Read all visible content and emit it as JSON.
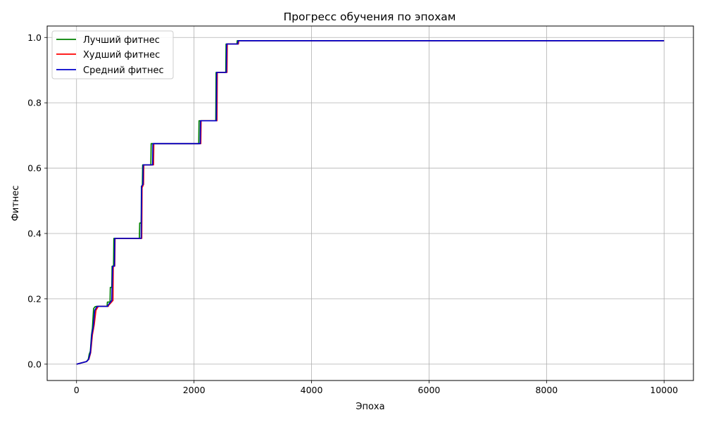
{
  "chart_data": {
    "type": "line",
    "title": "Прогресс обучения по эпохам",
    "xlabel": "Эпоха",
    "ylabel": "Фитнес",
    "xlim": [
      -500,
      10500
    ],
    "ylim": [
      -0.05,
      1.035
    ],
    "x_ticks": [
      0,
      2000,
      4000,
      6000,
      8000,
      10000
    ],
    "x_tick_labels": [
      "0",
      "2000",
      "4000",
      "6000",
      "8000",
      "10000"
    ],
    "y_ticks": [
      0.0,
      0.2,
      0.4,
      0.6,
      0.8,
      1.0
    ],
    "y_tick_labels": [
      "0.0",
      "0.2",
      "0.4",
      "0.6",
      "0.8",
      "1.0"
    ],
    "grid": true,
    "legend_position": "top-left",
    "series": [
      {
        "name": "Лучший фитнес",
        "color": "#008000",
        "points": [
          [
            0,
            0
          ],
          [
            170,
            0.008
          ],
          [
            200,
            0.015
          ],
          [
            215,
            0.03
          ],
          [
            235,
            0.04
          ],
          [
            255,
            0.09
          ],
          [
            270,
            0.11
          ],
          [
            290,
            0.17
          ],
          [
            310,
            0.175
          ],
          [
            340,
            0.177
          ],
          [
            520,
            0.177
          ],
          [
            525,
            0.19
          ],
          [
            570,
            0.19
          ],
          [
            575,
            0.235
          ],
          [
            600,
            0.235
          ],
          [
            605,
            0.3
          ],
          [
            630,
            0.3
          ],
          [
            635,
            0.385
          ],
          [
            1070,
            0.385
          ],
          [
            1075,
            0.432
          ],
          [
            1100,
            0.432
          ],
          [
            1105,
            0.545
          ],
          [
            1120,
            0.545
          ],
          [
            1125,
            0.61
          ],
          [
            1265,
            0.61
          ],
          [
            1270,
            0.675
          ],
          [
            2080,
            0.675
          ],
          [
            2085,
            0.745
          ],
          [
            2370,
            0.745
          ],
          [
            2375,
            0.893
          ],
          [
            2540,
            0.893
          ],
          [
            2545,
            0.98
          ],
          [
            2730,
            0.98
          ],
          [
            2735,
            0.99
          ],
          [
            10000,
            0.99
          ]
        ]
      },
      {
        "name": "Худший фитнес",
        "color": "#ff0000",
        "points": [
          [
            0,
            0
          ],
          [
            170,
            0.008
          ],
          [
            210,
            0.015
          ],
          [
            240,
            0.035
          ],
          [
            270,
            0.09
          ],
          [
            300,
            0.12
          ],
          [
            330,
            0.165
          ],
          [
            370,
            0.177
          ],
          [
            540,
            0.177
          ],
          [
            545,
            0.18
          ],
          [
            620,
            0.195
          ],
          [
            625,
            0.3
          ],
          [
            650,
            0.3
          ],
          [
            655,
            0.385
          ],
          [
            1110,
            0.385
          ],
          [
            1115,
            0.54
          ],
          [
            1140,
            0.55
          ],
          [
            1145,
            0.61
          ],
          [
            1310,
            0.61
          ],
          [
            1315,
            0.675
          ],
          [
            2115,
            0.675
          ],
          [
            2120,
            0.745
          ],
          [
            2390,
            0.745
          ],
          [
            2395,
            0.893
          ],
          [
            2560,
            0.893
          ],
          [
            2565,
            0.98
          ],
          [
            2755,
            0.98
          ],
          [
            2760,
            0.99
          ],
          [
            10000,
            0.99
          ]
        ]
      },
      {
        "name": "Средний фитнес",
        "color": "#0000cc",
        "points": [
          [
            0,
            0
          ],
          [
            170,
            0.008
          ],
          [
            205,
            0.015
          ],
          [
            235,
            0.035
          ],
          [
            260,
            0.09
          ],
          [
            285,
            0.115
          ],
          [
            310,
            0.165
          ],
          [
            350,
            0.177
          ],
          [
            530,
            0.177
          ],
          [
            535,
            0.18
          ],
          [
            600,
            0.195
          ],
          [
            615,
            0.3
          ],
          [
            645,
            0.3
          ],
          [
            650,
            0.385
          ],
          [
            1100,
            0.385
          ],
          [
            1108,
            0.545
          ],
          [
            1130,
            0.55
          ],
          [
            1135,
            0.61
          ],
          [
            1295,
            0.61
          ],
          [
            1300,
            0.675
          ],
          [
            2105,
            0.675
          ],
          [
            2110,
            0.745
          ],
          [
            2380,
            0.745
          ],
          [
            2385,
            0.893
          ],
          [
            2550,
            0.893
          ],
          [
            2555,
            0.98
          ],
          [
            2745,
            0.98
          ],
          [
            2750,
            0.99
          ],
          [
            10000,
            0.99
          ]
        ]
      }
    ]
  }
}
